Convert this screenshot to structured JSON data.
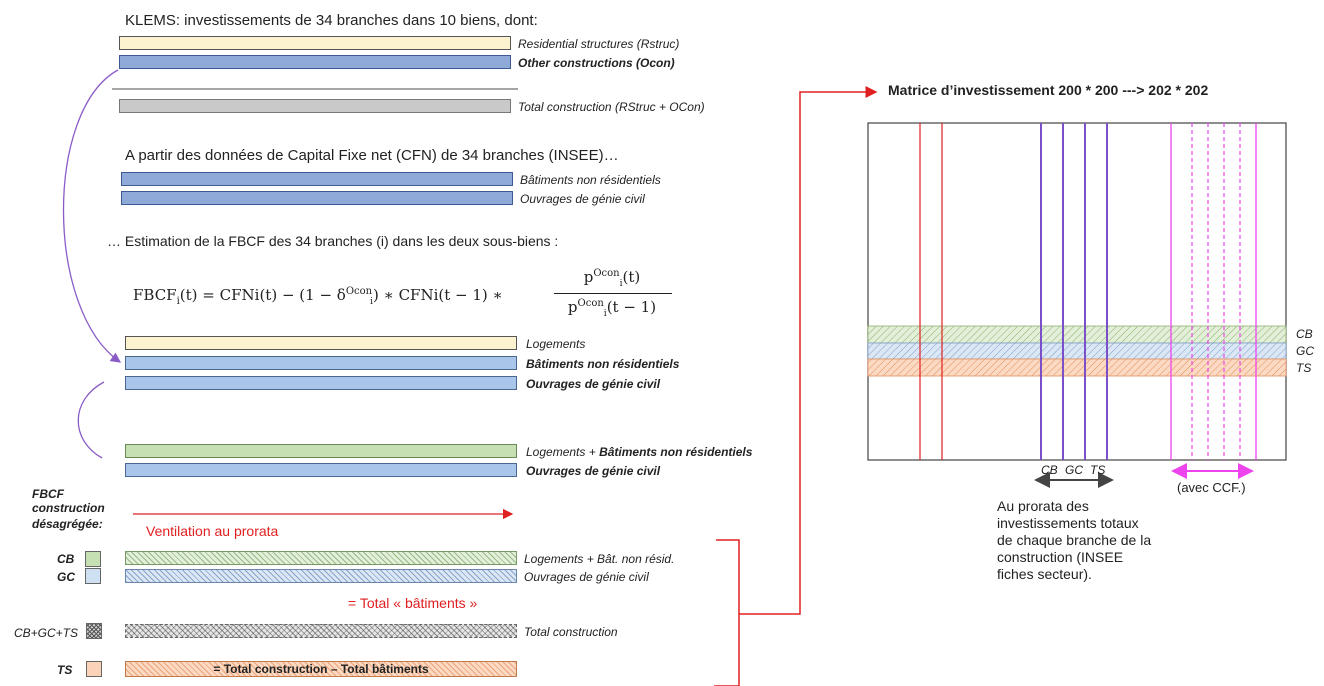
{
  "header": "KLEMS: investissements de 34 branches dans 10 biens, dont:",
  "klems_labels": {
    "rstruc": "Residential structures (Rstruc)",
    "ocon": "Other constructions (Ocon)",
    "total": "Total construction (RStruc + OCon)"
  },
  "cfn_intro": "A partir des données de Capital Fixe net (CFN) de 34 branches (INSEE)…",
  "cfn_labels": {
    "bnr": "Bâtiments non résidentiels",
    "ogc": "Ouvrages de génie civil"
  },
  "estimation_text": "… Estimation de la FBCF des 34 branches (i) dans les deux sous-biens :",
  "formula": {
    "lhs": "FBCF",
    "lhs_sub": "i",
    "lhs_arg": "(t) = ",
    "t1": "CFNi(t) − (1 − δ",
    "delta_sup": "Ocon",
    "delta_sub": "i",
    "t2": ") ∗ CFNi(t − 1) ∗",
    "num": "p",
    "num_sup": "Ocon",
    "num_sub": "i",
    "num_arg": "(t)",
    "den": "p",
    "den_sup": "Ocon",
    "den_sub": "i",
    "den_arg": "(t − 1)"
  },
  "three_labels": {
    "logements": "Logements",
    "bnr": "Bâtiments non résidentiels",
    "ogc": "Ouvrages de génie civil"
  },
  "two_labels": {
    "log_prefix": "Logements + ",
    "log_bold": "Bâtiments non résidentiels",
    "ogc": "Ouvrages de génie civil"
  },
  "fbcf_title": [
    "FBCF",
    "construction",
    "désagrégée:"
  ],
  "ventilation": "Ventilation au prorata",
  "rows": {
    "cb_code": "CB",
    "gc_code": "GC",
    "cb_label": "Logements + Bât. non résid.",
    "gc_label": "Ouvrages de génie civil",
    "total_batiments": "= Total « bâtiments »",
    "all_code": "CB+GC+TS",
    "total_label": "Total construction",
    "ts_code": "TS",
    "ts_bar_text": "= Total construction –  Total bâtiments"
  },
  "matrix": {
    "title": "Matrice d’investissement 200 * 200   ---> 202 * 202",
    "row_labels": [
      "CB",
      "GC",
      "TS"
    ],
    "col_labels": [
      "CB",
      "GC",
      "TS"
    ],
    "ccf_label": "(avec CCF.)",
    "note": [
      "Au prorata des",
      "investissements totaux",
      "de chaque branche de la",
      "construction (INSEE",
      "fiches secteur)."
    ]
  },
  "colors": {
    "cream": "#fdf2cf",
    "blue": "#8fa9d8",
    "light_blue": "#a9c6ea",
    "green": "#c6dfb3",
    "orange": "#fbd9c2",
    "red": "#e02020",
    "purple": "#8a5cc7",
    "magenta": "#ee44ee"
  }
}
